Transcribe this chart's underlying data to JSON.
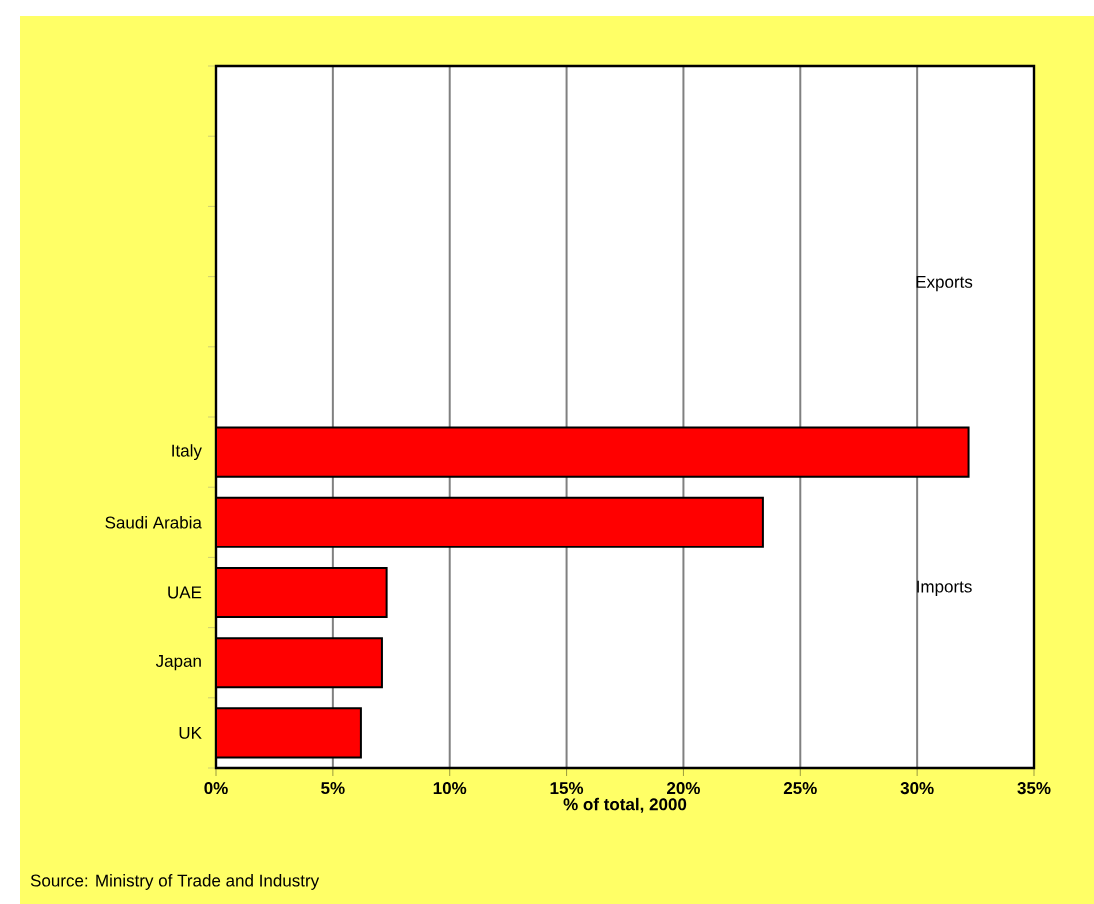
{
  "chart_data": {
    "type": "bar",
    "orientation": "horizontal",
    "categories": [
      null,
      null,
      null,
      null,
      null,
      "Italy",
      "Saudi Arabia",
      "UAE",
      "Japan",
      "UK"
    ],
    "values": [
      null,
      null,
      null,
      null,
      null,
      32.2,
      23.4,
      7.3,
      7.1,
      6.2
    ],
    "color": "#ff0000",
    "xlim": [
      0,
      35
    ],
    "xticks": [
      {
        "value": 0,
        "label": "0%"
      },
      {
        "value": 5,
        "label": "5%"
      },
      {
        "value": 10,
        "label": "10%"
      },
      {
        "value": 15,
        "label": "15%"
      },
      {
        "value": 20,
        "label": "20%"
      },
      {
        "value": 25,
        "label": "25%"
      },
      {
        "value": 30,
        "label": "30%"
      },
      {
        "value": 35,
        "label": "35%"
      }
    ],
    "xlabel": "% of total, 2000",
    "grid": "x",
    "annotations": [
      "Exports",
      "Imports",
      "Source: Ministry of Trade and Industry"
    ]
  }
}
